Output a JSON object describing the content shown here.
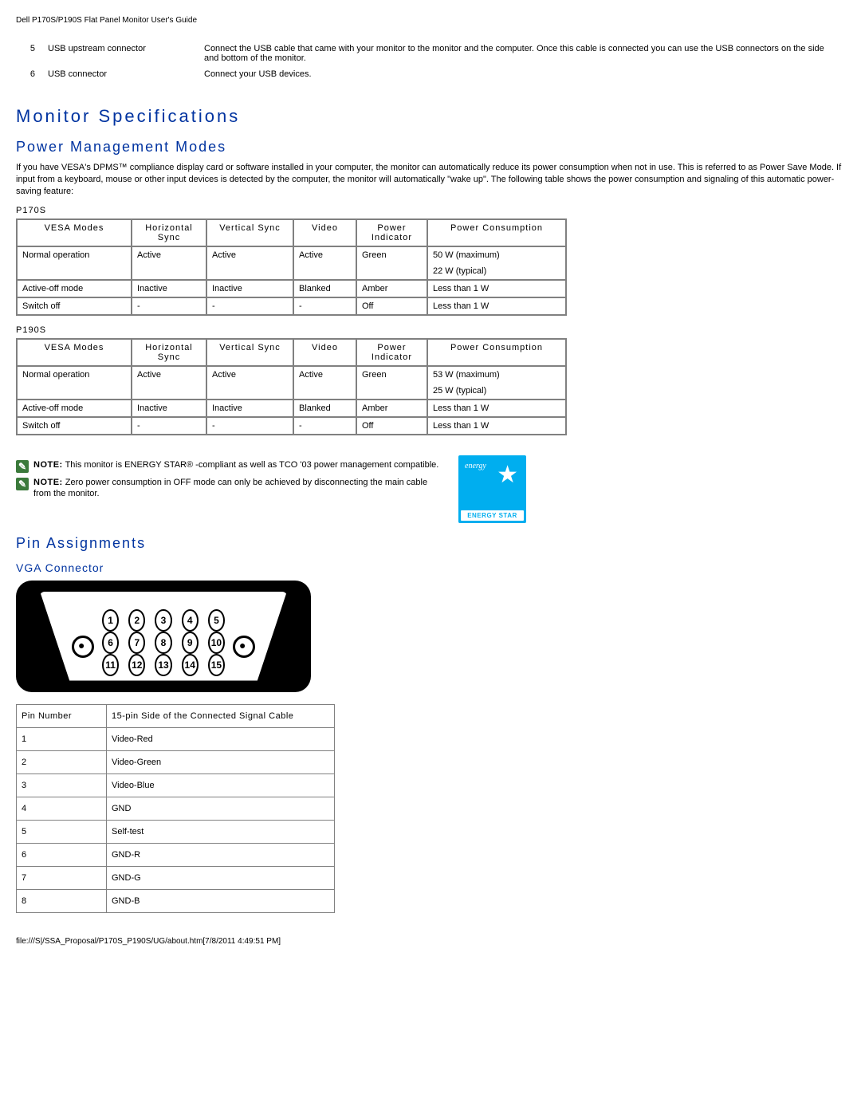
{
  "header": {
    "title": "Dell P170S/P190S Flat Panel Monitor User's Guide"
  },
  "usb_rows": [
    {
      "num": "5",
      "label": "USB upstream connector",
      "desc": "Connect the USB cable that came with your monitor to the monitor and the computer. Once this cable is connected you can use the USB connectors on the side and bottom of the monitor."
    },
    {
      "num": "6",
      "label": "USB connector",
      "desc": "Connect your USB devices."
    }
  ],
  "section_title": "Monitor Specifications",
  "power_modes": {
    "title": "Power Management Modes",
    "intro": "If you have VESA's DPMS™ compliance display card or software installed in your computer, the monitor can automatically reduce its power consumption when not in use. This is referred to as Power Save Mode. If input from a keyboard, mouse or other input devices is detected by the computer, the monitor will automatically \"wake up\". The following table shows the power consumption and signaling of this automatic power-saving feature:",
    "columns": [
      "VESA Modes",
      "Horizontal Sync",
      "Vertical Sync",
      "Video",
      "Power Indicator",
      "Power Consumption"
    ],
    "models": [
      {
        "name": "P170S",
        "rows": [
          [
            "Normal operation",
            "Active",
            "Active",
            "Active",
            "Green",
            "50 W (maximum)\n22 W (typical)"
          ],
          [
            "Active-off mode",
            "Inactive",
            "Inactive",
            "Blanked",
            "Amber",
            "Less than 1 W"
          ],
          [
            "Switch off",
            "-",
            "-",
            "-",
            "Off",
            "Less than 1 W"
          ]
        ]
      },
      {
        "name": "P190S",
        "rows": [
          [
            "Normal operation",
            "Active",
            "Active",
            "Active",
            "Green",
            "53 W (maximum)\n25 W (typical)"
          ],
          [
            "Active-off mode",
            "Inactive",
            "Inactive",
            "Blanked",
            "Amber",
            "Less than 1 W"
          ],
          [
            "Switch off",
            "-",
            "-",
            "-",
            "Off",
            "Less than 1 W"
          ]
        ]
      }
    ]
  },
  "notes": [
    {
      "label": "NOTE:",
      "text": "This monitor is ENERGY STAR® -compliant as well as TCO '03 power management compatible."
    },
    {
      "label": "NOTE:",
      "text": "Zero power consumption in OFF mode can only be achieved by disconnecting the main cable from the monitor."
    }
  ],
  "energy_star": {
    "label": "ENERGY STAR",
    "scribble": "energy",
    "bg_color": "#00aeef"
  },
  "pin_assignments": {
    "title": "Pin Assignments",
    "vga": {
      "title": "VGA Connector",
      "pin_rows": [
        [
          1,
          2,
          3,
          4,
          5
        ],
        [
          6,
          7,
          8,
          9,
          10
        ],
        [
          11,
          12,
          13,
          14,
          15
        ]
      ],
      "table_headers": [
        "Pin Number",
        "15-pin Side of the Connected Signal Cable"
      ],
      "pins": [
        [
          "1",
          "Video-Red"
        ],
        [
          "2",
          "Video-Green"
        ],
        [
          "3",
          "Video-Blue"
        ],
        [
          "4",
          "GND"
        ],
        [
          "5",
          "Self-test"
        ],
        [
          "6",
          "GND-R"
        ],
        [
          "7",
          "GND-G"
        ],
        [
          "8",
          "GND-B"
        ]
      ]
    }
  },
  "footer": "file:///S|/SSA_Proposal/P170S_P190S/UG/about.htm[7/8/2011 4:49:51 PM]",
  "colors": {
    "heading": "#0033a0",
    "border": "#808080",
    "note_icon": "#3b7a3b"
  }
}
